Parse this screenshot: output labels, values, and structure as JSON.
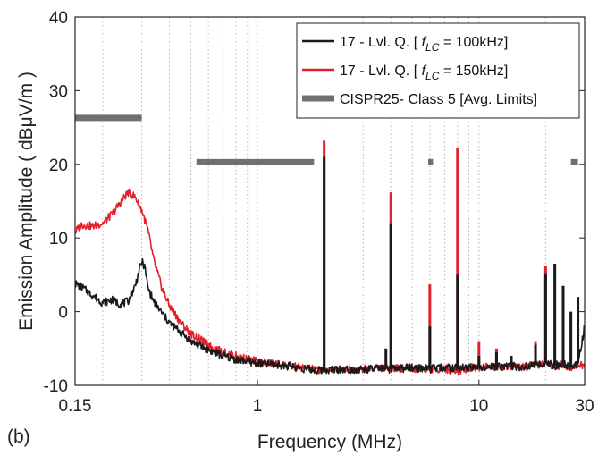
{
  "panel_label": "(b)",
  "colors": {
    "series_100k": "#1a1a1a",
    "series_150k": "#e0202a",
    "limit": "#707070",
    "grid": "#b5b5b5"
  },
  "chart_data": {
    "type": "line",
    "xscale": "log",
    "xlabel": "Frequency (MHz)",
    "ylabel": "Emission Amplitude ( dBμV/m )",
    "xlim": [
      0.15,
      30
    ],
    "ylim": [
      -10,
      40
    ],
    "xticks": [
      0.15,
      1,
      10,
      30
    ],
    "xtick_labels": [
      "0.15",
      "1",
      "10",
      "30"
    ],
    "yticks": [
      -10,
      0,
      10,
      20,
      30,
      40
    ],
    "grid": "vertical minor gridlines (log), dotted",
    "legend_position": "top-right",
    "series": [
      {
        "name": "17 - Lvl. Q. [ fLC = 100kHz]",
        "legend_prefix": "17 - Lvl. Q. [ ",
        "legend_var": "f",
        "legend_sub": "LC",
        "legend_suffix": " = 100kHz]",
        "color": "#1a1a1a",
        "x": [
          0.15,
          0.16,
          0.18,
          0.2,
          0.22,
          0.24,
          0.26,
          0.28,
          0.3,
          0.31,
          0.32,
          0.34,
          0.37,
          0.4,
          0.45,
          0.5,
          0.6,
          0.7,
          0.8,
          1.0,
          1.3,
          1.6,
          1.85,
          2.0,
          2.5,
          3.0,
          3.5,
          4.0,
          5.0,
          6.0,
          7.0,
          8.0,
          9.0,
          10.0,
          12.0,
          14.0,
          16.0,
          18.0,
          20.0,
          22.0,
          24.0,
          26.0,
          28.0,
          30.0
        ],
        "y": [
          3.8,
          3.4,
          2.2,
          1.2,
          1.6,
          1.0,
          1.4,
          3.5,
          6.8,
          6.0,
          3.2,
          1.4,
          -0.2,
          -1.5,
          -2.8,
          -4.0,
          -5.2,
          -6.0,
          -6.5,
          -7.0,
          -7.3,
          -7.7,
          -8.0,
          -7.9,
          -7.8,
          -7.9,
          -7.7,
          -7.8,
          -7.6,
          -7.8,
          -7.6,
          -7.7,
          -7.6,
          -7.4,
          -7.5,
          -7.3,
          -7.6,
          -7.2,
          -7.0,
          -7.3,
          -7.1,
          -7.5,
          -7.0,
          -2.0
        ],
        "peaks": [
          {
            "x": 2.0,
            "y": 21
          },
          {
            "x": 3.8,
            "y": -5
          },
          {
            "x": 4.0,
            "y": 12
          },
          {
            "x": 6.0,
            "y": -2
          },
          {
            "x": 8.0,
            "y": 5
          },
          {
            "x": 10.0,
            "y": -6
          },
          {
            "x": 12.0,
            "y": -5.5
          },
          {
            "x": 14.0,
            "y": -6
          },
          {
            "x": 18.0,
            "y": -4.5
          },
          {
            "x": 20.0,
            "y": 5.2
          },
          {
            "x": 22.0,
            "y": 6.5
          },
          {
            "x": 24.0,
            "y": 3.5
          },
          {
            "x": 26.0,
            "y": 0
          },
          {
            "x": 28.0,
            "y": 2
          }
        ]
      },
      {
        "name": "17 - Lvl. Q. [ fLC = 150kHz]",
        "legend_prefix": "17 - Lvl. Q. [ ",
        "legend_var": "f",
        "legend_sub": "LC",
        "legend_suffix": " = 150kHz]",
        "color": "#e0202a",
        "x": [
          0.15,
          0.16,
          0.18,
          0.2,
          0.22,
          0.24,
          0.26,
          0.28,
          0.3,
          0.32,
          0.34,
          0.37,
          0.4,
          0.45,
          0.5,
          0.6,
          0.7,
          0.8,
          1.0,
          1.3,
          1.6,
          1.85,
          2.0,
          2.5,
          3.0,
          3.5,
          4.0,
          5.0,
          6.0,
          7.0,
          8.0,
          9.0,
          10.0,
          12.0,
          14.0,
          16.0,
          18.0,
          20.0,
          22.0,
          24.0,
          26.0,
          28.0,
          30.0
        ],
        "y": [
          10.8,
          11.8,
          11.6,
          12.0,
          13.2,
          14.8,
          16.2,
          15.6,
          13.8,
          11.0,
          7.0,
          3.2,
          0.8,
          -1.5,
          -3.0,
          -4.5,
          -5.5,
          -6.0,
          -6.8,
          -7.2,
          -7.6,
          -7.9,
          -7.9,
          -7.8,
          -7.8,
          -7.6,
          -7.7,
          -7.7,
          -7.8,
          -7.7,
          -8.2,
          -7.6,
          -7.5,
          -7.4,
          -7.5,
          -7.5,
          -7.3,
          -7.0,
          -7.4,
          -7.2,
          -7.5,
          -7.2,
          -7.4
        ],
        "peaks": [
          {
            "x": 2.0,
            "y": 23.2
          },
          {
            "x": 4.0,
            "y": 16.2
          },
          {
            "x": 6.0,
            "y": 3.7
          },
          {
            "x": 8.0,
            "y": 22.2
          },
          {
            "x": 10.0,
            "y": -4
          },
          {
            "x": 12.0,
            "y": -5
          },
          {
            "x": 14.0,
            "y": -6
          },
          {
            "x": 18.0,
            "y": -4
          },
          {
            "x": 20.0,
            "y": 6.2
          }
        ]
      },
      {
        "name": "CISPR25- Class 5 [Avg. Limits]",
        "legend_prefix": "CISPR25- Class 5 [Avg. Limits]",
        "color": "#707070",
        "segments": [
          {
            "x": [
              0.15,
              0.3
            ],
            "y": 26.3
          },
          {
            "x": [
              0.53,
              1.8
            ],
            "y": 20.3
          },
          {
            "x": [
              5.9,
              6.2
            ],
            "y": 20.3
          },
          {
            "x": [
              26.0,
              28.0
            ],
            "y": 20.3
          }
        ]
      }
    ]
  }
}
